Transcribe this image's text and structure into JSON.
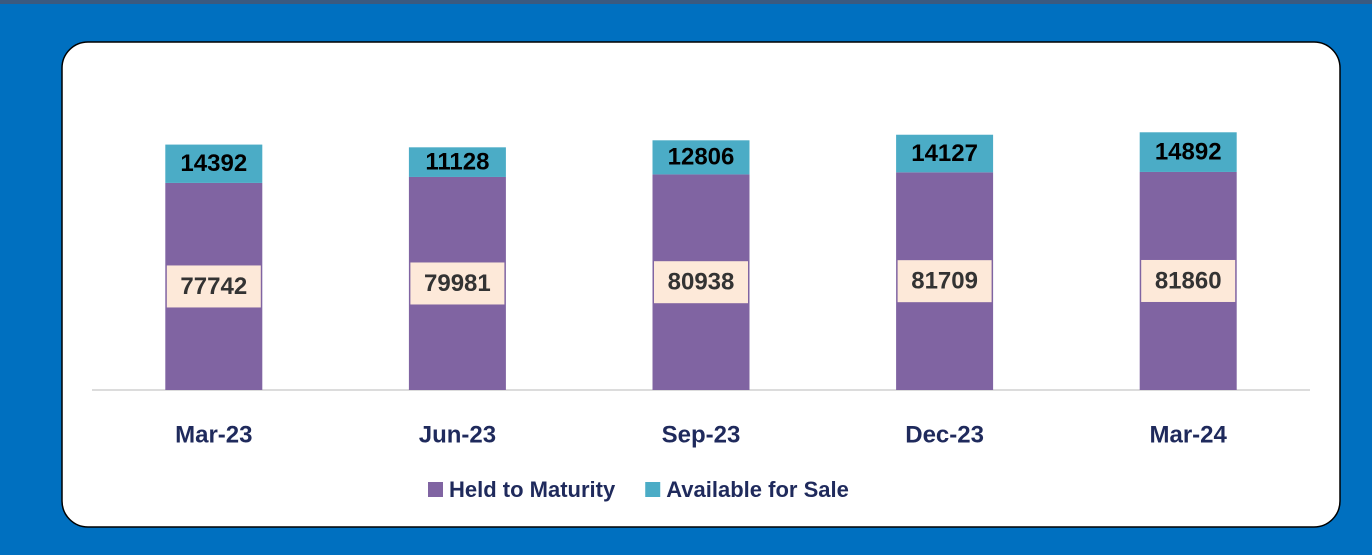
{
  "chart_data": {
    "type": "stacked-bar",
    "categories": [
      "Mar-23",
      "Jun-23",
      "Sep-23",
      "Dec-23",
      "Mar-24"
    ],
    "series": [
      {
        "name": "Held to Maturity",
        "color": "#8064a2",
        "values": [
          77742,
          79981,
          80938,
          81709,
          81860
        ]
      },
      {
        "name": "Available for Sale",
        "color": "#4bacc6",
        "values": [
          14392,
          11128,
          12806,
          14127,
          14892
        ]
      }
    ],
    "ylim": [
      0,
      110000
    ],
    "legend": "bottom"
  }
}
